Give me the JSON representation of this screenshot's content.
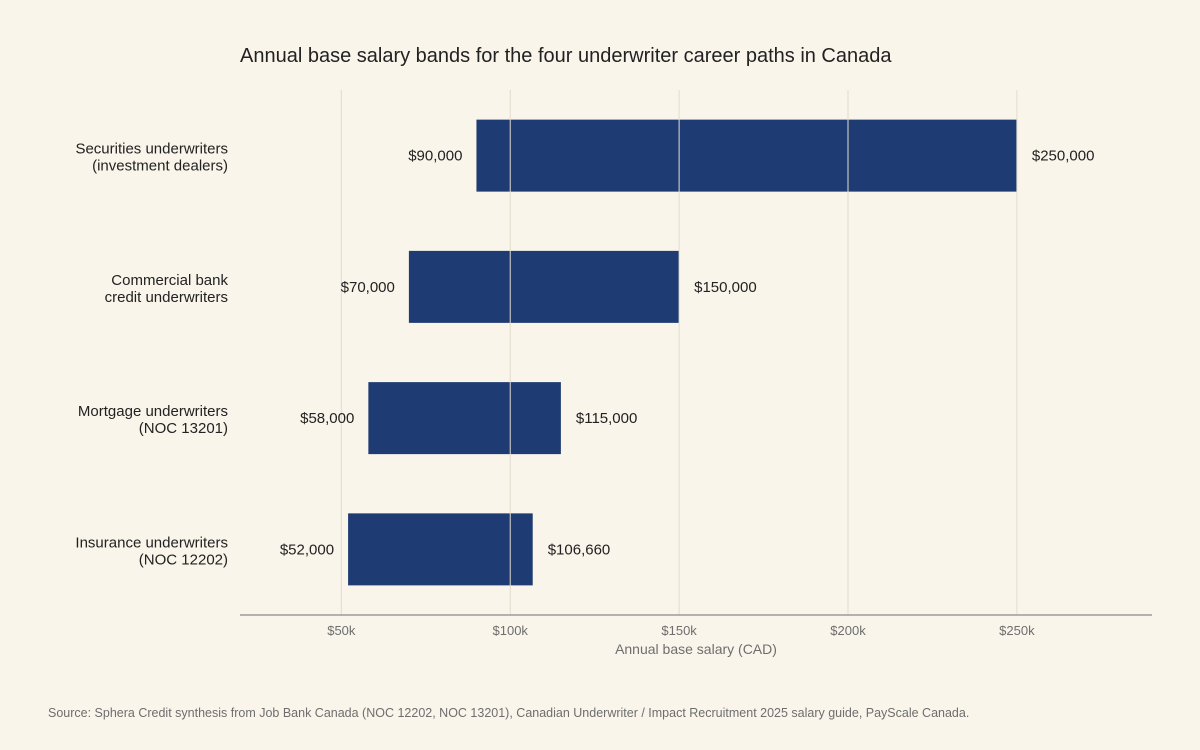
{
  "chart_data": {
    "type": "bar",
    "orientation": "horizontal-range",
    "title": "Annual base salary bands for the four underwriter career paths in Canada",
    "xlabel": "Annual base salary (CAD)",
    "ylabel": "",
    "xlim": [
      20000,
      290000
    ],
    "xticks": [
      {
        "value": 50000,
        "label": "$50k"
      },
      {
        "value": 100000,
        "label": "$100k"
      },
      {
        "value": 150000,
        "label": "$150k"
      },
      {
        "value": 200000,
        "label": "$200k"
      },
      {
        "value": 250000,
        "label": "$250k"
      }
    ],
    "grid": true,
    "bar_color": "#1f3b73",
    "categories": [
      {
        "lines": [
          "Securities underwriters",
          "(investment dealers)"
        ],
        "low": 90000,
        "high": 250000,
        "low_label": "$90,000",
        "high_label": "$250,000"
      },
      {
        "lines": [
          "Commercial bank",
          "credit underwriters"
        ],
        "low": 70000,
        "high": 150000,
        "low_label": "$70,000",
        "high_label": "$150,000"
      },
      {
        "lines": [
          "Mortgage underwriters",
          "(NOC 13201)"
        ],
        "low": 58000,
        "high": 115000,
        "low_label": "$58,000",
        "high_label": "$115,000"
      },
      {
        "lines": [
          "Insurance underwriters",
          "(NOC 12202)"
        ],
        "low": 52000,
        "high": 106660,
        "low_label": "$52,000",
        "high_label": "$106,660"
      }
    ],
    "source": "Source: Sphera Credit synthesis from Job Bank Canada (NOC 12202, NOC 13201), Canadian Underwriter / Impact Recruitment 2025 salary guide, PayScale Canada."
  }
}
